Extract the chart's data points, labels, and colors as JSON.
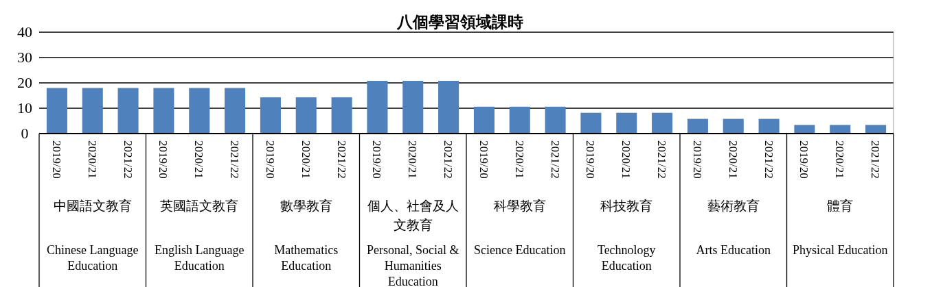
{
  "chart_data": {
    "type": "bar",
    "title": "八個學習領域課時",
    "categories": [
      "2019/20",
      "2020/21",
      "2021/22",
      "2019/20",
      "2020/21",
      "2021/22",
      "2019/20",
      "2020/21",
      "2021/22",
      "2019/20",
      "2020/21",
      "2021/22",
      "2019/20",
      "2020/21",
      "2021/22",
      "2019/20",
      "2020/21",
      "2021/22",
      "2019/20",
      "2020/21",
      "2021/22",
      "2019/20",
      "2020/21",
      "2021/22"
    ],
    "values": [
      18,
      18,
      18,
      18,
      18,
      18,
      14.3,
      14.3,
      14.3,
      20.8,
      20.8,
      20.8,
      10.6,
      10.6,
      10.6,
      8.2,
      8.2,
      8.2,
      5.8,
      5.8,
      5.8,
      3.4,
      3.4,
      3.4
    ],
    "color": "#4f81bd",
    "ylim": [
      0,
      40
    ],
    "yticks": [
      0,
      10,
      20,
      30,
      40
    ],
    "grid": "y",
    "annotations": [
      "中國語文教育",
      "Chinese Language Education",
      "英國語文教育",
      "English Language Education",
      "數學教育",
      "Mathematics Education",
      "個人、社會及人文教育",
      "Personal, Social & Humanities Education",
      "科學教育",
      "Science Education",
      "科技教育",
      "Technology Education",
      "藝術教育",
      "Arts Education",
      "體育",
      "Physical Education"
    ]
  }
}
